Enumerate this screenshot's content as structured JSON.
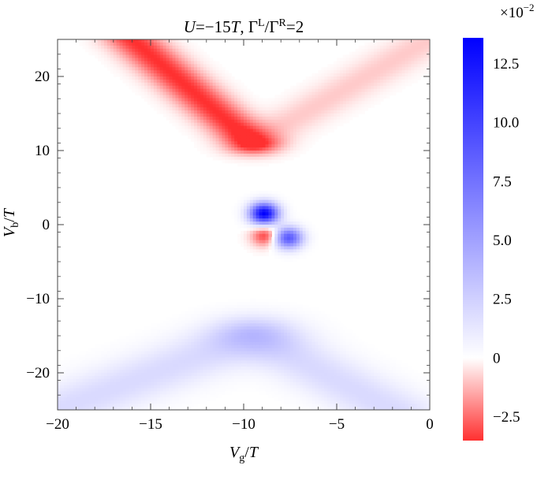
{
  "chart_data": {
    "type": "heatmap",
    "title": "U=−15T,  Γ^L/Γ^R=2",
    "title_parts": {
      "u": "U",
      "eq1": "=−15",
      "t1": "T",
      "sep": ",  Γ",
      "sup1": "L",
      "slash": "/Γ",
      "sup2": "R",
      "eq2": "=2"
    },
    "xlabel": "V_g/T",
    "xlabel_parts": {
      "v": "V",
      "sub": "g",
      "slash": "/",
      "t": "T"
    },
    "ylabel": "V_b/T",
    "ylabel_parts": {
      "v": "V",
      "sub": "b",
      "slash": "/",
      "t": "T"
    },
    "xlim": [
      -20,
      0
    ],
    "ylim": [
      -25,
      25
    ],
    "x_ticks": [
      -20,
      -15,
      -10,
      -5,
      0
    ],
    "x_tick_labels": [
      "−20",
      "−15",
      "−10",
      "−5",
      "0"
    ],
    "y_ticks": [
      -20,
      -10,
      0,
      10,
      20
    ],
    "y_tick_labels": [
      "−20",
      "−10",
      "0",
      "10",
      "20"
    ],
    "colorbar": {
      "multiplier": "×10",
      "exponent": "−2",
      "range": [
        -3.5,
        13.6
      ],
      "ticks": [
        -2.5,
        0,
        2.5,
        5.0,
        7.5,
        10.0,
        12.5
      ],
      "tick_labels": [
        "−2.5",
        "0",
        "2.5",
        "5.0",
        "7.5",
        "10.0",
        "12.5"
      ],
      "negative_color": "#ff3030",
      "zero_color": "#ffffff",
      "positive_color": "#0000ff"
    },
    "features": [
      {
        "kind": "ridge",
        "sign": "negative",
        "from": [
          -16,
          25
        ],
        "to": [
          -9.5,
          11
        ],
        "peak": -3.5,
        "width": 1.0
      },
      {
        "kind": "ridge",
        "sign": "negative",
        "from": [
          -9.5,
          11
        ],
        "to": [
          0,
          25
        ],
        "peak": -0.9,
        "width": 1.1
      },
      {
        "kind": "ridge",
        "sign": "positive",
        "from": [
          -20,
          -25
        ],
        "to": [
          -9.5,
          -15
        ],
        "peak": 2.0,
        "width": 1.8
      },
      {
        "kind": "ridge",
        "sign": "positive",
        "from": [
          -9.5,
          -15
        ],
        "to": [
          -2,
          -25
        ],
        "peak": 2.0,
        "width": 1.6
      },
      {
        "kind": "blob",
        "sign": "positive",
        "center": [
          -8.9,
          1.5
        ],
        "peak": 13.6
      },
      {
        "kind": "blob",
        "sign": "positive",
        "center": [
          -7.6,
          -1.8
        ],
        "peak": 9.0
      },
      {
        "kind": "blob",
        "sign": "negative",
        "center": [
          -8.8,
          -1.5
        ],
        "peak": -3.5
      }
    ]
  }
}
